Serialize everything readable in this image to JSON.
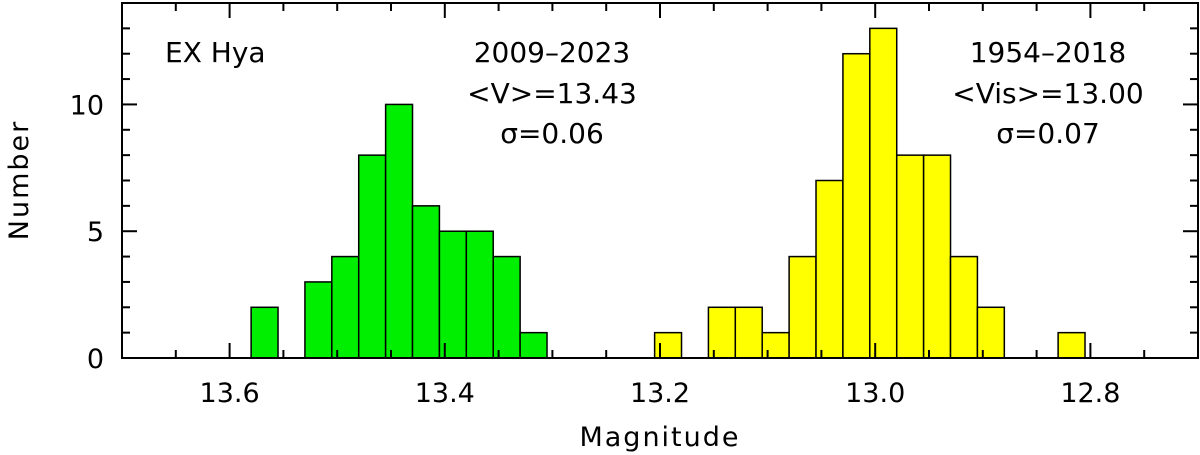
{
  "chart_data": {
    "type": "histogram",
    "xlabel": "Magnitude",
    "ylabel": "Number",
    "annotations": [
      "EX Hya",
      "2009–2023",
      "<V>=13.43",
      "σ=0.06",
      "1954–2018",
      "<Vis>=13.00",
      "σ=0.07"
    ],
    "xlim": [
      13.7,
      12.7
    ],
    "ylim": [
      0,
      14
    ],
    "xticks": [
      13.6,
      13.4,
      13.2,
      {
        "value": 13,
        "label": "13.0"
      },
      12.8
    ],
    "xticks_minor": [
      13.65,
      13.55,
      13.5,
      13.45,
      13.35,
      13.3,
      13.25,
      13.15,
      13.1,
      13.05,
      12.95,
      12.9,
      12.85,
      12.75
    ],
    "yticks": [
      0,
      5,
      10
    ],
    "yticks_minor": [
      1,
      2,
      3,
      4,
      6,
      7,
      8,
      9,
      11,
      12,
      13
    ],
    "series": [
      {
        "color": "#00ee00",
        "bins": [
          13.58,
          13.555,
          13.53,
          13.505,
          13.48,
          13.455,
          13.43,
          13.405,
          13.38,
          13.355,
          13.33,
          13.305
        ],
        "values": [
          2,
          0,
          3,
          4,
          8,
          10,
          6,
          5,
          5,
          4,
          1
        ]
      },
      {
        "color": "#ffff00",
        "bins": [
          13.205,
          13.18,
          13.155,
          13.13,
          13.105,
          13.08,
          13.055,
          13.03,
          13.005,
          12.98,
          12.955,
          12.93,
          12.905,
          12.88,
          12.855,
          12.83,
          12.805
        ],
        "values": [
          1,
          0,
          2,
          2,
          1,
          4,
          7,
          12,
          13,
          8,
          8,
          4,
          2,
          0,
          0,
          1
        ]
      }
    ]
  }
}
